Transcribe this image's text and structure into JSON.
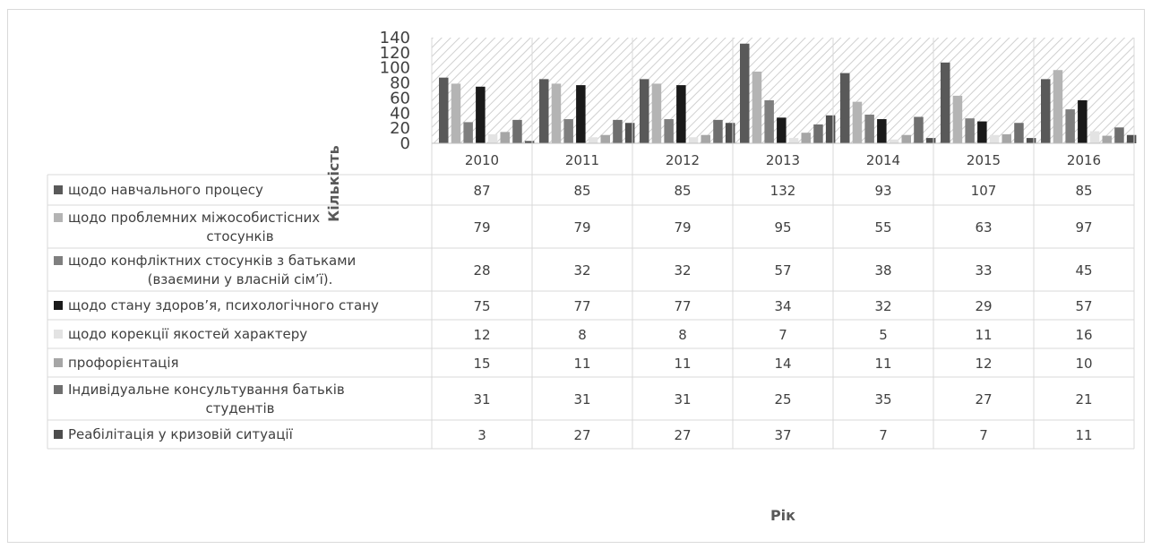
{
  "chart_data": {
    "type": "bar",
    "title": "",
    "xlabel": "Рік",
    "ylabel": "Кількість",
    "ylim": [
      0,
      140
    ],
    "yticks": [
      0,
      20,
      40,
      60,
      80,
      100,
      120,
      140
    ],
    "categories": [
      "2010",
      "2011",
      "2012",
      "2013",
      "2014",
      "2015",
      "2016"
    ],
    "legend": "data-table",
    "grid": true,
    "series": [
      {
        "name": "щодо навчального процесу",
        "name_lines": [
          "щодо навчального процесу"
        ],
        "color": "#595959",
        "values": [
          87,
          85,
          85,
          132,
          93,
          107,
          85
        ]
      },
      {
        "name": "щодо проблемних міжособистісних стосунків",
        "name_lines": [
          "щодо проблемних міжособистісних",
          "стосунків"
        ],
        "color": "#b4b4b4",
        "values": [
          79,
          79,
          79,
          95,
          55,
          63,
          97
        ]
      },
      {
        "name": "щодо конфліктних стосунків з батьками (взаємини у власній сім'ї).",
        "name_lines": [
          "щодо конфліктних стосунків з батьками",
          "(взаємини у власній сім’ї)."
        ],
        "color": "#7f7f7f",
        "values": [
          28,
          32,
          32,
          57,
          38,
          33,
          45
        ]
      },
      {
        "name": "щодо стану здоров'я, психологічного стану",
        "name_lines": [
          "щодо стану здоров’я, психологічного  стану"
        ],
        "color": "#1a1a1a",
        "values": [
          75,
          77,
          77,
          34,
          32,
          29,
          57
        ]
      },
      {
        "name": "щодо корекції якостей характеру",
        "name_lines": [
          "щодо корекції якостей характеру"
        ],
        "color": "#e3e3e3",
        "values": [
          12,
          8,
          8,
          7,
          5,
          11,
          16
        ]
      },
      {
        "name": "профорієнтація",
        "name_lines": [
          "профорієнтація"
        ],
        "color": "#a6a6a6",
        "values": [
          15,
          11,
          11,
          14,
          11,
          12,
          10
        ]
      },
      {
        "name": "Індивідуальне консультування батьків студентів",
        "name_lines": [
          "Індивідуальне консультування  батьків",
          "студентів"
        ],
        "color": "#6f6f6f",
        "values": [
          31,
          31,
          31,
          25,
          35,
          27,
          21
        ]
      },
      {
        "name": "Реабілітація у кризовій ситуації",
        "name_lines": [
          "Реабілітація у кризовій ситуації"
        ],
        "color": "#4d4d4d",
        "values": [
          3,
          27,
          27,
          37,
          7,
          7,
          11
        ]
      }
    ]
  }
}
